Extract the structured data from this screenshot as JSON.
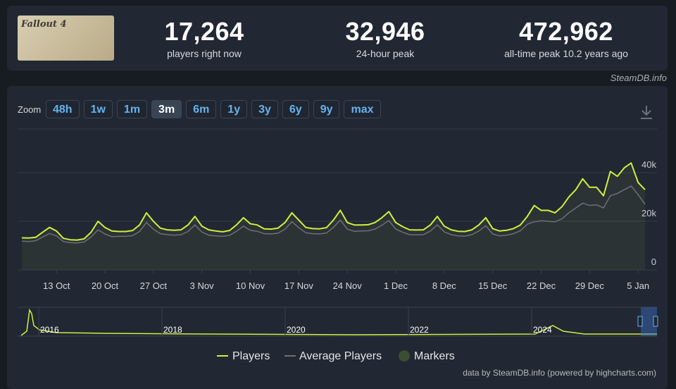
{
  "header": {
    "image_text": "Fallout 4",
    "stats": [
      {
        "value": "17,264",
        "label": "players right now"
      },
      {
        "value": "32,946",
        "label": "24-hour peak"
      },
      {
        "value": "472,962",
        "label": "all-time peak 10.2 years ago"
      }
    ],
    "source": "SteamDB.info"
  },
  "zoom": {
    "label": "Zoom",
    "buttons": [
      "48h",
      "1w",
      "1m",
      "3m",
      "6m",
      "1y",
      "3y",
      "6y",
      "9y",
      "max"
    ],
    "active": "3m"
  },
  "navigator": {
    "labels": [
      "2016",
      "2018",
      "2020",
      "2022",
      "2024"
    ]
  },
  "chart_data": {
    "type": "line",
    "categories": [
      null,
      null,
      null,
      null,
      null,
      "13 Oct",
      null,
      null,
      null,
      null,
      null,
      null,
      "20 Oct",
      null,
      null,
      null,
      null,
      null,
      null,
      "27 Oct",
      null,
      null,
      null,
      null,
      null,
      null,
      "3 Nov",
      null,
      null,
      null,
      null,
      null,
      null,
      "10 Nov",
      null,
      null,
      null,
      null,
      null,
      null,
      "17 Nov",
      null,
      null,
      null,
      null,
      null,
      null,
      "24 Nov",
      null,
      null,
      null,
      null,
      null,
      null,
      "1 Dec",
      null,
      null,
      null,
      null,
      null,
      null,
      "8 Dec",
      null,
      null,
      null,
      null,
      null,
      null,
      "15 Dec",
      null,
      null,
      null,
      null,
      null,
      null,
      "22 Dec",
      null,
      null,
      null,
      null,
      null,
      null,
      "29 Dec",
      null,
      null,
      null,
      null,
      null,
      null,
      "5 Jan",
      null
    ],
    "series": [
      {
        "name": "Players",
        "color": "#cdf03f",
        "values": [
          13200,
          13100,
          13400,
          15500,
          17500,
          16000,
          13000,
          12400,
          12300,
          12800,
          15500,
          20000,
          17500,
          16000,
          15800,
          15800,
          16200,
          18500,
          23500,
          20000,
          17200,
          16500,
          16300,
          16500,
          18500,
          22000,
          18000,
          16500,
          16000,
          15700,
          16200,
          18500,
          21500,
          19000,
          18500,
          16900,
          16800,
          17200,
          19500,
          23500,
          20500,
          17500,
          17000,
          16900,
          17400,
          20500,
          24500,
          19500,
          18500,
          18500,
          18600,
          19500,
          21500,
          24000,
          19500,
          17800,
          16500,
          16400,
          16500,
          18500,
          22000,
          18000,
          16500,
          15900,
          15800,
          16500,
          18500,
          21500,
          17000,
          16000,
          16300,
          17000,
          18500,
          22000,
          26500,
          24500,
          24500,
          23500,
          26000,
          30000,
          33000,
          37500,
          34000,
          34000,
          30500,
          40500,
          38500,
          42000,
          44000,
          36000,
          33000
        ]
      },
      {
        "name": "Average Players",
        "color": "#6b7078",
        "values": [
          11800,
          11700,
          12000,
          13500,
          15000,
          14000,
          11700,
          11200,
          11100,
          11500,
          13500,
          16500,
          14800,
          13700,
          13800,
          13800,
          14100,
          15800,
          19500,
          16800,
          14900,
          14500,
          14300,
          14500,
          15800,
          18500,
          15600,
          14300,
          14000,
          13800,
          14200,
          15900,
          18000,
          16300,
          15900,
          14900,
          14800,
          15100,
          16800,
          19800,
          17400,
          15300,
          14900,
          14800,
          15200,
          17500,
          20500,
          16800,
          15900,
          16000,
          16100,
          16800,
          18400,
          20300,
          16800,
          15500,
          14500,
          14400,
          14500,
          16000,
          18600,
          15700,
          14500,
          14000,
          13900,
          14500,
          16000,
          18200,
          14800,
          14000,
          14300,
          14900,
          16100,
          18800,
          19800,
          20200,
          20000,
          19800,
          21000,
          23500,
          25500,
          27500,
          26500,
          26800,
          25500,
          30500,
          31500,
          33000,
          34500,
          31000,
          27000
        ]
      }
    ],
    "markers_label": "Markers",
    "ylim": [
      0,
      58000
    ],
    "yticks": [
      0,
      {
        "value": 20000,
        "label": "20k"
      },
      {
        "value": 40000,
        "label": "40k"
      }
    ],
    "grid": true,
    "credit": "data by SteamDB.info (powered by highcharts.com)"
  }
}
